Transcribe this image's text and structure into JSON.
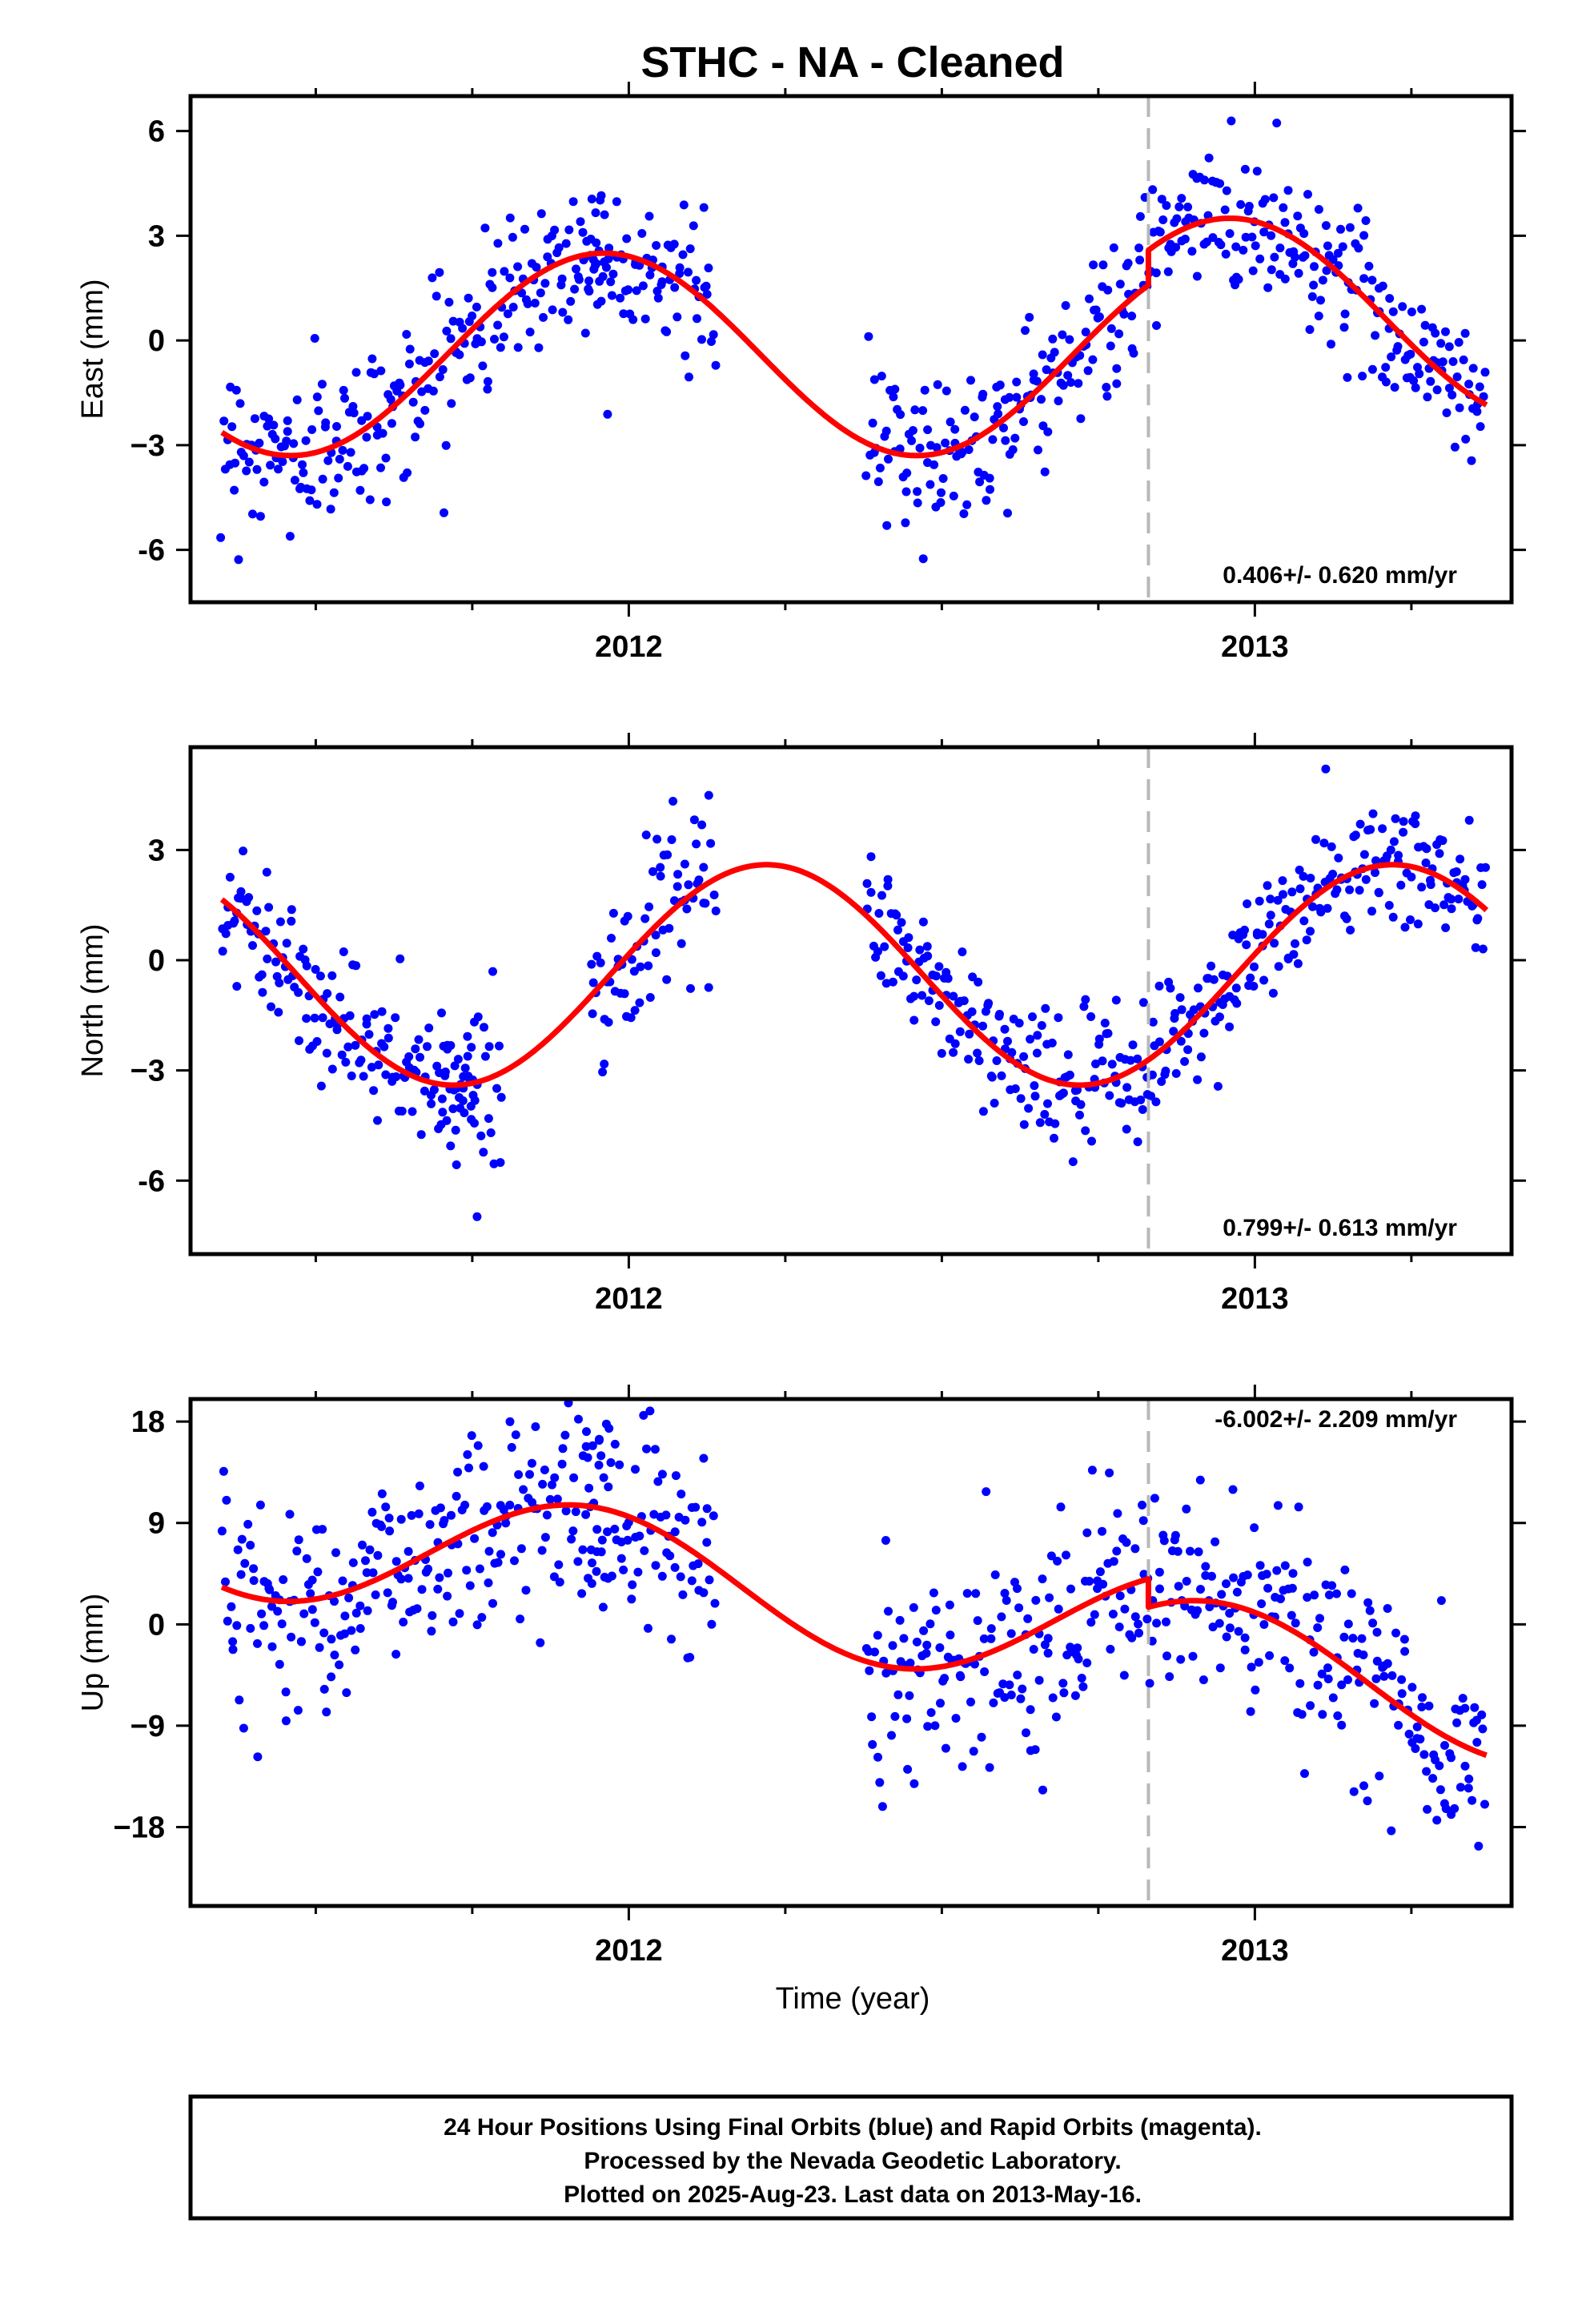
{
  "title": "STHC  - NA - Cleaned",
  "xlabel": "Time (year)",
  "footer": {
    "line1": "24 Hour Positions Using Final Orbits (blue) and Rapid Orbits (magenta).",
    "line2": "Processed by the Nevada Geodetic Laboratory.",
    "line3": "Plotted on 2025-Aug-23. Last data on 2013-May-16."
  },
  "colors": {
    "points": "#0000ff",
    "fit": "#ff0000",
    "event_line": "#b8b8b8",
    "frame": "#000000"
  },
  "chart_data": [
    {
      "type": "scatter",
      "ylabel": "East (mm)",
      "rate": "0.406+/- 0.620 mm/yr",
      "xlim": [
        2011.3,
        2013.41
      ],
      "ylim": [
        -7.5,
        7.0
      ],
      "xticks": [
        2012,
        2013
      ],
      "xtick_labels": [
        "2012",
        "2013"
      ],
      "yticks": [
        -6,
        -3,
        0,
        3,
        6
      ],
      "ytick_labels": [
        "-6",
        "−3",
        "0",
        "3",
        "6"
      ],
      "event_x": 2012.83,
      "data_ranges": [
        [
          2011.35,
          2011.97
        ],
        [
          2011.93,
          2012.14
        ],
        [
          2012.38,
          2013.37
        ]
      ],
      "fit": {
        "mean": -0.4,
        "amplitude": 2.9,
        "phase_year": 2011.96,
        "offset_at_event": 1.0
      },
      "noise_sd": 1.1
    },
    {
      "type": "scatter",
      "ylabel": "North (mm)",
      "rate": "0.799+/- 0.613 mm/yr",
      "xlim": [
        2011.3,
        2013.41
      ],
      "ylim": [
        -8.0,
        5.8
      ],
      "xticks": [
        2012,
        2013
      ],
      "xtick_labels": [
        "2012",
        "2013"
      ],
      "yticks": [
        -6,
        -3,
        0,
        3
      ],
      "ytick_labels": [
        "-6",
        "−3",
        "0",
        "3"
      ],
      "event_x": 2012.83,
      "data_ranges": [
        [
          2011.35,
          2011.76
        ],
        [
          2011.7,
          2011.8
        ],
        [
          2011.94,
          2012.14
        ],
        [
          2012.38,
          2013.37
        ]
      ],
      "fit": {
        "mean": -0.4,
        "amplitude": 3.0,
        "phase_year": 2012.22,
        "offset_at_event": 0.0
      },
      "noise_sd": 0.95
    },
    {
      "type": "scatter",
      "ylabel": "Up (mm)",
      "rate": "-6.002+/- 2.209 mm/yr",
      "xlim": [
        2011.3,
        2013.41
      ],
      "ylim": [
        -25.0,
        20.0
      ],
      "xticks": [
        2012,
        2013
      ],
      "xtick_labels": [
        "2012",
        "2013"
      ],
      "yticks": [
        -18,
        -9,
        0,
        9,
        18
      ],
      "ytick_labels": [
        "−18",
        "−9",
        "0",
        "9",
        "18"
      ],
      "event_x": 2012.83,
      "data_ranges": [
        [
          2011.35,
          2011.97
        ],
        [
          2011.93,
          2012.14
        ],
        [
          2012.38,
          2013.37
        ]
      ],
      "fit": {
        "mean": 2.0,
        "amplitude": 5.7,
        "phase_year": 2011.93,
        "trend_per_year": -6.0,
        "offset_at_event": -2.5
      },
      "noise_sd": 4.5
    }
  ]
}
